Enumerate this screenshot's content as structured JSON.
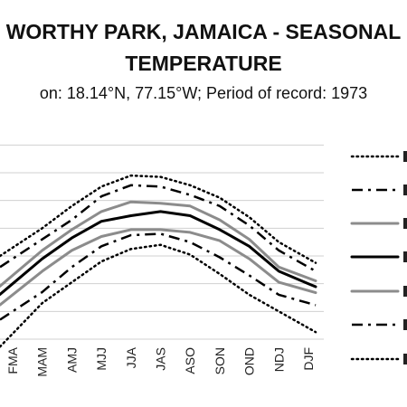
{
  "chart_data": {
    "type": "line",
    "title": "WORTHY PARK, JAMAICA - SEASONAL TEMPERATURE",
    "title_lines": [
      "WORTHY PARK, JAMAICA - SEASONAL",
      "TEMPERATURE"
    ],
    "subtitle": "on: 18.14°N, 77.15°W; Period of record: 1973",
    "xlabel": "",
    "ylabel": "",
    "categories": [
      "FMA",
      "MAM",
      "AMJ",
      "MJJ",
      "JJA",
      "JAS",
      "ASO",
      "SON",
      "OND",
      "NDJ",
      "DJF"
    ],
    "grid": true,
    "legend_position": "right",
    "series": [
      {
        "style": "dotted-black",
        "color": "#000000",
        "values": [
          24.3,
          25.0,
          25.8,
          26.5,
          26.9,
          26.85,
          26.55,
          26.1,
          25.4,
          24.5,
          23.9
        ]
      },
      {
        "style": "dashdot-black",
        "color": "#000000",
        "values": [
          23.9,
          24.6,
          25.3,
          26.15,
          26.55,
          26.5,
          26.2,
          25.8,
          25.1,
          24.2,
          23.6
        ]
      },
      {
        "style": "solid-gray",
        "color": "#8c8c8c",
        "values": [
          23.3,
          24.2,
          24.95,
          25.6,
          25.95,
          25.9,
          25.8,
          25.3,
          24.6,
          23.6,
          23.2
        ]
      },
      {
        "style": "solid-black",
        "color": "#000000",
        "values": [
          23.0,
          23.9,
          24.65,
          25.25,
          25.45,
          25.6,
          25.45,
          24.95,
          24.35,
          23.45,
          23.0
        ]
      },
      {
        "style": "solid-gray",
        "color": "#8c8c8c",
        "values": [
          22.6,
          23.45,
          24.2,
          24.7,
          24.95,
          24.95,
          24.85,
          24.55,
          23.9,
          23.05,
          22.75
        ]
      },
      {
        "style": "dashdot-black",
        "color": "#000000",
        "values": [
          22.0,
          22.7,
          23.6,
          24.35,
          24.75,
          24.8,
          24.5,
          23.95,
          23.3,
          22.6,
          22.3
        ]
      },
      {
        "style": "dotted-black",
        "color": "#000000",
        "values": [
          21.2,
          22.3,
          23.05,
          23.8,
          24.25,
          24.4,
          24.05,
          23.35,
          22.6,
          22.0,
          21.4
        ]
      }
    ],
    "ylim": [
      21.0,
      28.5
    ]
  }
}
